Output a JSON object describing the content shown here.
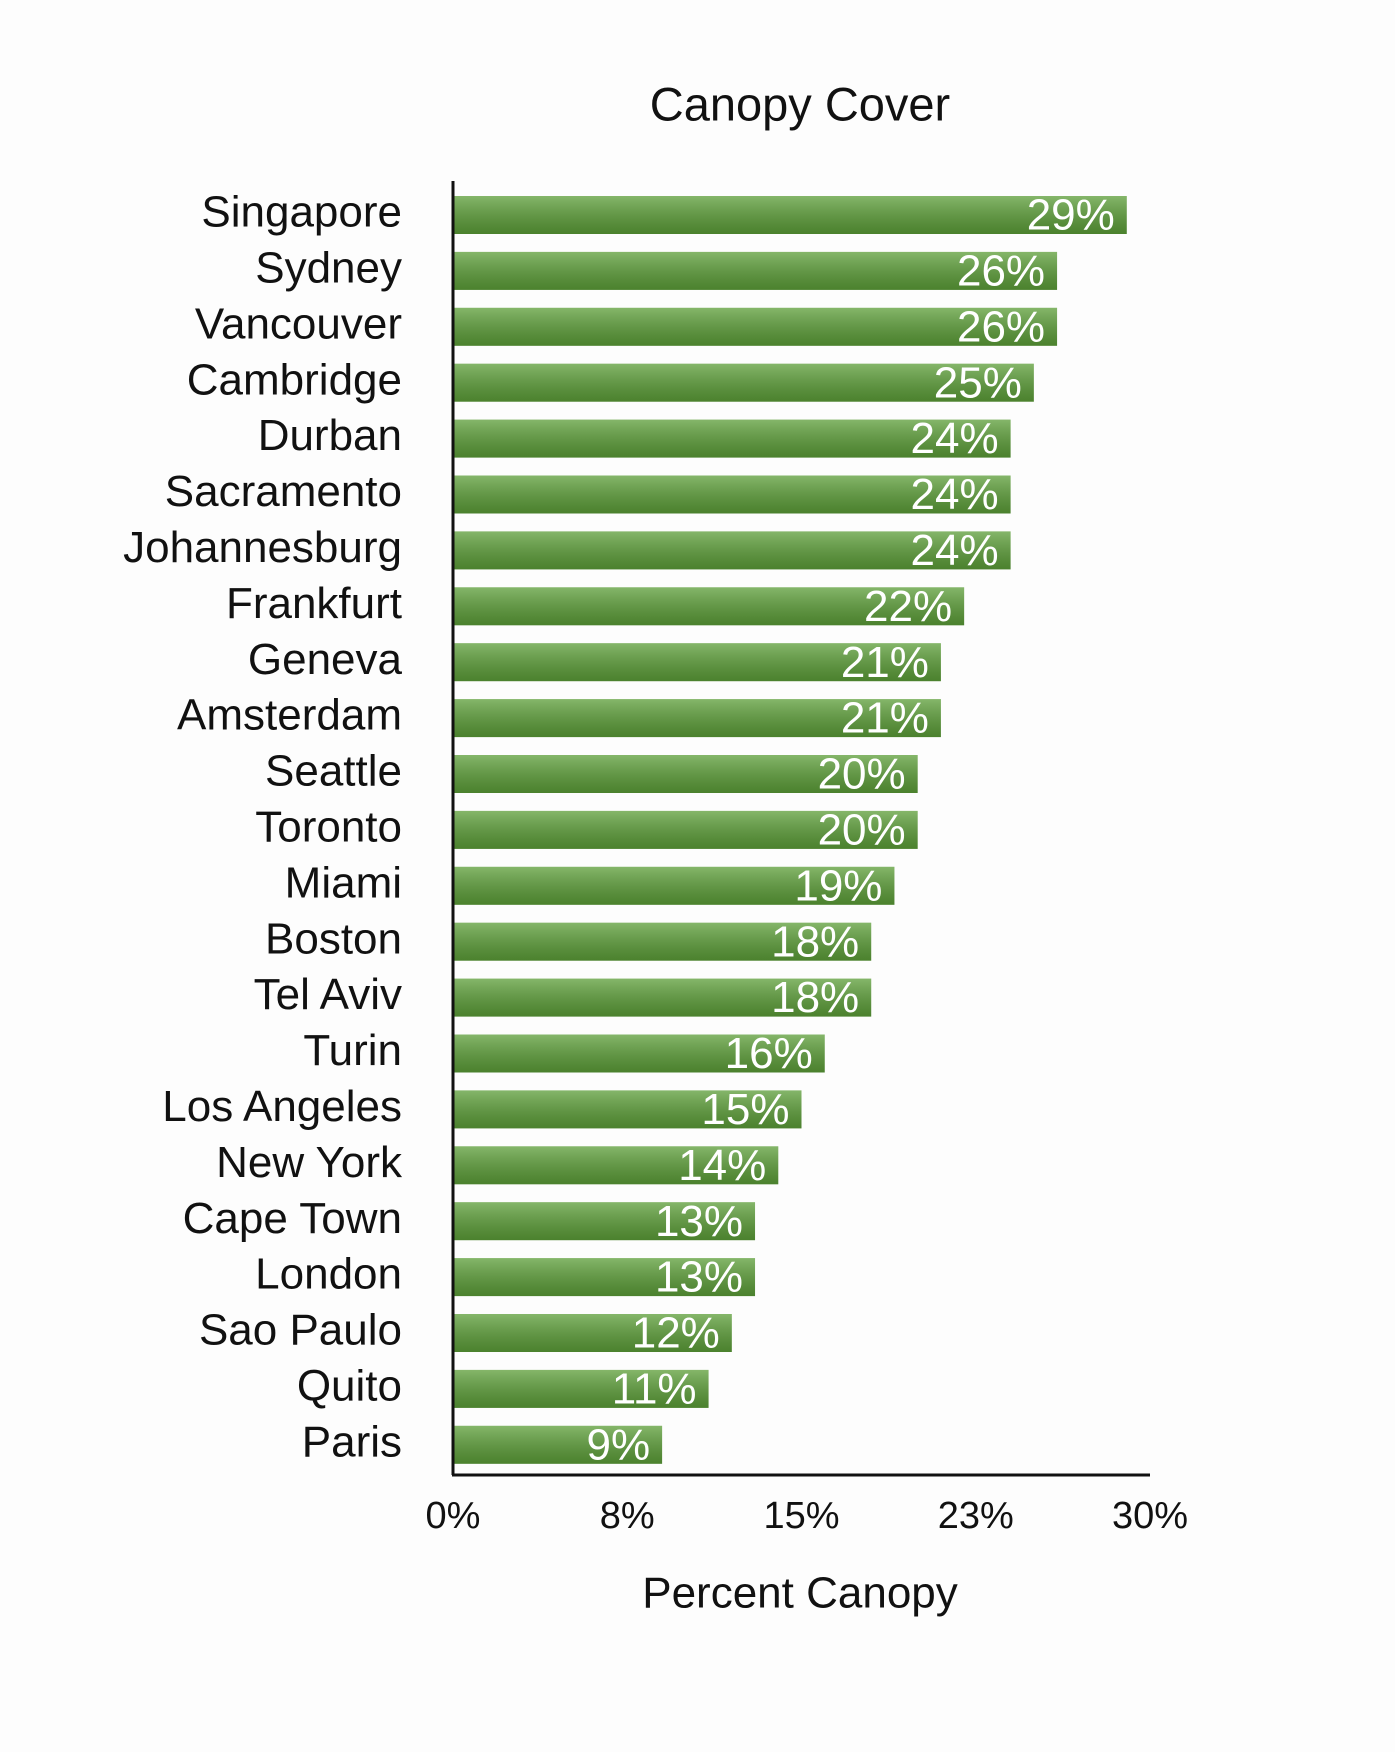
{
  "chart_data": {
    "type": "barh",
    "title": "Canopy Cover",
    "x_label": "Percent Canopy",
    "categories": [
      "Singapore",
      "Sydney",
      "Vancouver",
      "Cambridge",
      "Durban",
      "Sacramento",
      "Johannesburg",
      "Frankfurt",
      "Geneva",
      "Amsterdam",
      "Seattle",
      "Toronto",
      "Miami",
      "Boston",
      "Tel Aviv",
      "Turin",
      "Los Angeles",
      "New York",
      "Cape Town",
      "London",
      "Sao Paulo",
      "Quito",
      "Paris"
    ],
    "values": [
      29,
      26,
      26,
      25,
      24,
      24,
      24,
      22,
      21,
      21,
      20,
      20,
      19,
      18,
      18,
      16,
      15,
      14,
      13,
      13,
      12,
      11,
      9
    ],
    "value_labels": [
      "29%",
      "26%",
      "26%",
      "25%",
      "24%",
      "24%",
      "24%",
      "22%",
      "21%",
      "21%",
      "20%",
      "20%",
      "19%",
      "18%",
      "18%",
      "16%",
      "15%",
      "14%",
      "13%",
      "13%",
      "12%",
      "11%",
      "9%"
    ],
    "color": "#5c9e38",
    "xlim": [
      0,
      30
    ],
    "xticks": [
      {
        "value": 0,
        "label": "0%"
      },
      {
        "value": 7.5,
        "label": "8%"
      },
      {
        "value": 15,
        "label": "15%"
      },
      {
        "value": 22.5,
        "label": "23%"
      },
      {
        "value": 30,
        "label": "30%"
      }
    ]
  }
}
